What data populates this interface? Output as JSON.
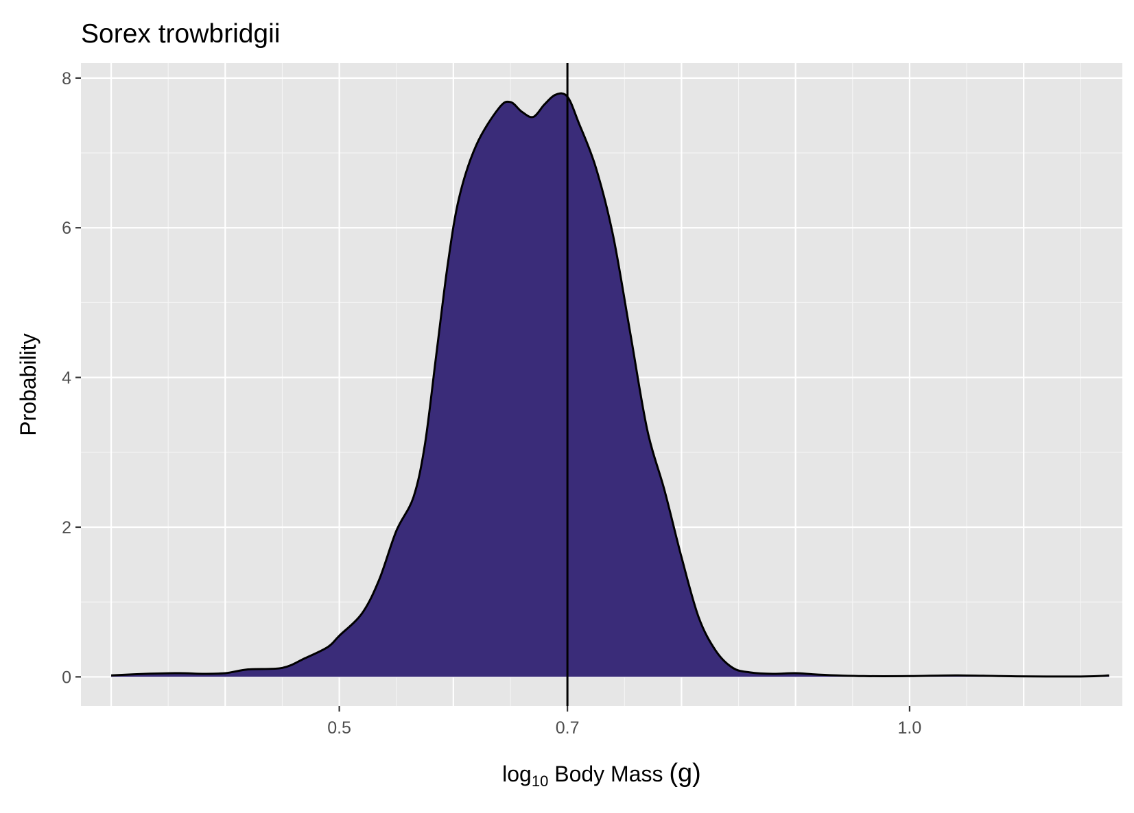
{
  "chart_data": {
    "type": "area",
    "title": "Sorex trowbridgii",
    "xlabel": "log10 Body Mass (g)",
    "xlabel_parts": {
      "main": "log",
      "sub": "10",
      "rest": " Body Mass ",
      "unit": "(g)"
    },
    "ylabel": "Probability",
    "xlim": [
      0.2735,
      1.1865
    ],
    "ylim": [
      -0.39,
      8.2
    ],
    "grid": true,
    "x_ticks": [
      {
        "value": 0.5,
        "label": "0.5"
      },
      {
        "value": 0.7,
        "label": "0.7"
      },
      {
        "value": 1.0,
        "label": "1.0"
      }
    ],
    "y_ticks": [
      {
        "value": 0,
        "label": "0"
      },
      {
        "value": 2,
        "label": "2"
      },
      {
        "value": 4,
        "label": "4"
      },
      {
        "value": 6,
        "label": "6"
      },
      {
        "value": 8,
        "label": "8"
      }
    ],
    "reference_line": {
      "x": 0.7,
      "color": "#000000"
    },
    "series": [
      {
        "fill": "#3a2c79",
        "stroke": "#000000",
        "points": [
          [
            0.3,
            0.02
          ],
          [
            0.33,
            0.04
          ],
          [
            0.36,
            0.05
          ],
          [
            0.38,
            0.04
          ],
          [
            0.4,
            0.05
          ],
          [
            0.42,
            0.1
          ],
          [
            0.45,
            0.12
          ],
          [
            0.47,
            0.25
          ],
          [
            0.49,
            0.4
          ],
          [
            0.5,
            0.55
          ],
          [
            0.52,
            0.85
          ],
          [
            0.535,
            1.3
          ],
          [
            0.55,
            1.95
          ],
          [
            0.565,
            2.4
          ],
          [
            0.575,
            3.1
          ],
          [
            0.585,
            4.3
          ],
          [
            0.595,
            5.5
          ],
          [
            0.605,
            6.4
          ],
          [
            0.62,
            7.1
          ],
          [
            0.64,
            7.6
          ],
          [
            0.65,
            7.68
          ],
          [
            0.66,
            7.55
          ],
          [
            0.67,
            7.48
          ],
          [
            0.68,
            7.65
          ],
          [
            0.69,
            7.78
          ],
          [
            0.7,
            7.75
          ],
          [
            0.71,
            7.4
          ],
          [
            0.725,
            6.8
          ],
          [
            0.74,
            5.9
          ],
          [
            0.755,
            4.6
          ],
          [
            0.77,
            3.3
          ],
          [
            0.785,
            2.5
          ],
          [
            0.8,
            1.6
          ],
          [
            0.815,
            0.8
          ],
          [
            0.83,
            0.35
          ],
          [
            0.845,
            0.12
          ],
          [
            0.86,
            0.06
          ],
          [
            0.88,
            0.04
          ],
          [
            0.9,
            0.05
          ],
          [
            0.92,
            0.03
          ],
          [
            0.96,
            0.01
          ],
          [
            1.0,
            0.01
          ],
          [
            1.04,
            0.02
          ],
          [
            1.08,
            0.01
          ],
          [
            1.12,
            0.005
          ],
          [
            1.15,
            0.005
          ],
          [
            1.165,
            0.01
          ],
          [
            1.175,
            0.02
          ]
        ]
      }
    ]
  }
}
